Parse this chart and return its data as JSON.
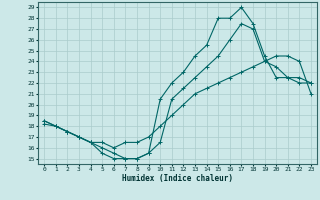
{
  "title": "",
  "xlabel": "Humidex (Indice chaleur)",
  "background_color": "#cce8e8",
  "grid_color": "#aacccc",
  "line_color": "#006666",
  "xlim": [
    -0.5,
    23.5
  ],
  "ylim": [
    14.5,
    29.5
  ],
  "xticks": [
    0,
    1,
    2,
    3,
    4,
    5,
    6,
    7,
    8,
    9,
    10,
    11,
    12,
    13,
    14,
    15,
    16,
    17,
    18,
    19,
    20,
    21,
    22,
    23
  ],
  "yticks": [
    15,
    16,
    17,
    18,
    19,
    20,
    21,
    22,
    23,
    24,
    25,
    26,
    27,
    28,
    29
  ],
  "line1_x": [
    0,
    1,
    2,
    3,
    4,
    5,
    6,
    7,
    8,
    9,
    10,
    11,
    12,
    13,
    14,
    15,
    16,
    17,
    18,
    19,
    20,
    21,
    22,
    23
  ],
  "line1_y": [
    18.2,
    18.0,
    17.5,
    17.0,
    16.5,
    16.5,
    16.0,
    16.5,
    16.5,
    17.0,
    18.0,
    19.0,
    20.0,
    21.0,
    21.5,
    22.0,
    22.5,
    23.0,
    23.5,
    24.0,
    24.5,
    24.5,
    24.0,
    21.0
  ],
  "line2_x": [
    0,
    1,
    2,
    3,
    4,
    5,
    6,
    7,
    8,
    9,
    10,
    11,
    12,
    13,
    14,
    15,
    16,
    17,
    18,
    19,
    20,
    21,
    22,
    23
  ],
  "line2_y": [
    18.5,
    18.0,
    17.5,
    17.0,
    16.5,
    16.0,
    15.5,
    15.0,
    15.0,
    15.5,
    20.5,
    22.0,
    23.0,
    24.5,
    25.5,
    28.0,
    28.0,
    29.0,
    27.5,
    24.5,
    22.5,
    22.5,
    22.5,
    22.0
  ],
  "line3_x": [
    0,
    1,
    2,
    3,
    4,
    5,
    6,
    7,
    8,
    9,
    10,
    11,
    12,
    13,
    14,
    15,
    16,
    17,
    18,
    19,
    20,
    21,
    22,
    23
  ],
  "line3_y": [
    18.5,
    18.0,
    17.5,
    17.0,
    16.5,
    15.5,
    15.0,
    15.0,
    15.0,
    15.5,
    16.5,
    20.5,
    21.5,
    22.5,
    23.5,
    24.5,
    26.0,
    27.5,
    27.0,
    24.0,
    23.5,
    22.5,
    22.0,
    22.0
  ]
}
